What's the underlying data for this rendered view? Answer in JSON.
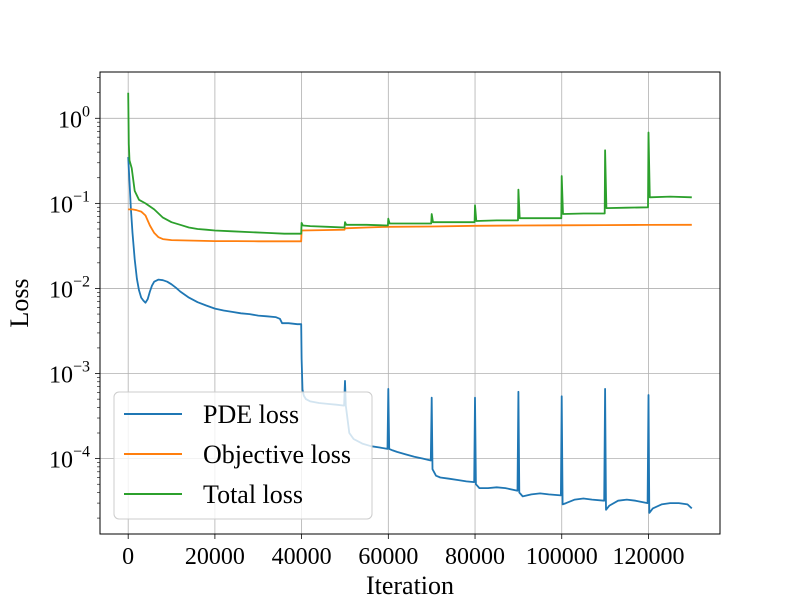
{
  "chart_data": {
    "type": "line",
    "xlabel": "Iteration",
    "ylabel": "Loss",
    "yscale": "log",
    "xlim": [
      -6500,
      136500
    ],
    "ylim": [
      1.3e-05,
      3.5
    ],
    "grid": true,
    "legend_position": "lower-left",
    "x_ticks": [
      {
        "value": 0,
        "label": "0"
      },
      {
        "value": 20000,
        "label": "20000"
      },
      {
        "value": 40000,
        "label": "40000"
      },
      {
        "value": 60000,
        "label": "60000"
      },
      {
        "value": 80000,
        "label": "80000"
      },
      {
        "value": 100000,
        "label": "100000"
      },
      {
        "value": 120000,
        "label": "120000"
      }
    ],
    "y_ticks": [
      {
        "value": 1,
        "base": "10",
        "exp": "0"
      },
      {
        "value": 0.1,
        "base": "10",
        "exp": "−1"
      },
      {
        "value": 0.01,
        "base": "10",
        "exp": "−2"
      },
      {
        "value": 0.001,
        "base": "10",
        "exp": "−3"
      },
      {
        "value": 0.0001,
        "base": "10",
        "exp": "−4"
      }
    ],
    "series": [
      {
        "name": "PDE loss",
        "color": "#1f77b4",
        "points": [
          [
            0,
            0.35
          ],
          [
            300,
            0.18
          ],
          [
            600,
            0.09
          ],
          [
            1000,
            0.045
          ],
          [
            1500,
            0.022
          ],
          [
            2000,
            0.013
          ],
          [
            2500,
            0.0095
          ],
          [
            3000,
            0.0078
          ],
          [
            3500,
            0.0072
          ],
          [
            4000,
            0.0068
          ],
          [
            4500,
            0.0075
          ],
          [
            5000,
            0.0092
          ],
          [
            5500,
            0.0108
          ],
          [
            6000,
            0.012
          ],
          [
            7000,
            0.0127
          ],
          [
            8000,
            0.0125
          ],
          [
            9000,
            0.012
          ],
          [
            10000,
            0.0112
          ],
          [
            11000,
            0.0102
          ],
          [
            12000,
            0.0092
          ],
          [
            14000,
            0.0078
          ],
          [
            16000,
            0.0069
          ],
          [
            18000,
            0.0063
          ],
          [
            20000,
            0.0058
          ],
          [
            22000,
            0.0055
          ],
          [
            24000,
            0.0053
          ],
          [
            26000,
            0.0051
          ],
          [
            28000,
            0.005
          ],
          [
            30000,
            0.0048
          ],
          [
            32000,
            0.0047
          ],
          [
            34000,
            0.0046
          ],
          [
            35000,
            0.0044
          ],
          [
            35500,
            0.0039
          ],
          [
            37000,
            0.0039
          ],
          [
            39000,
            0.0038
          ],
          [
            39900,
            0.0038
          ],
          [
            40000,
            0.0015
          ],
          [
            40200,
            0.00065
          ],
          [
            40500,
            0.00055
          ],
          [
            41000,
            0.0005
          ],
          [
            42000,
            0.00047
          ],
          [
            44000,
            0.00045
          ],
          [
            46000,
            0.00044
          ],
          [
            48000,
            0.00043
          ],
          [
            49800,
            0.00042
          ],
          [
            50000,
            0.00082
          ],
          [
            50200,
            0.00042
          ],
          [
            51000,
            0.0002
          ],
          [
            52000,
            0.00017
          ],
          [
            54000,
            0.00015
          ],
          [
            56000,
            0.00014
          ],
          [
            58000,
            0.000135
          ],
          [
            59800,
            0.00013
          ],
          [
            60000,
            0.00066
          ],
          [
            60200,
            0.00013
          ],
          [
            61000,
            0.000125
          ],
          [
            62000,
            0.00012
          ],
          [
            64000,
            0.000112
          ],
          [
            66000,
            0.000105
          ],
          [
            68000,
            0.0001
          ],
          [
            69800,
            9.5e-05
          ],
          [
            70000,
            0.00052
          ],
          [
            70200,
            7.5e-05
          ],
          [
            71000,
            6.3e-05
          ],
          [
            72000,
            6e-05
          ],
          [
            74000,
            5.8e-05
          ],
          [
            76000,
            5.6e-05
          ],
          [
            78000,
            5.4e-05
          ],
          [
            79800,
            5.3e-05
          ],
          [
            80000,
            0.00052
          ],
          [
            80200,
            5e-05
          ],
          [
            81000,
            4.5e-05
          ],
          [
            83000,
            4.5e-05
          ],
          [
            85000,
            4.6e-05
          ],
          [
            87000,
            4.5e-05
          ],
          [
            89800,
            4.2e-05
          ],
          [
            90000,
            0.00061
          ],
          [
            90200,
            4e-05
          ],
          [
            91000,
            3.6e-05
          ],
          [
            93000,
            3.8e-05
          ],
          [
            95000,
            3.9e-05
          ],
          [
            97000,
            3.8e-05
          ],
          [
            99800,
            3.7e-05
          ],
          [
            100000,
            0.00054
          ],
          [
            100200,
            2.9e-05
          ],
          [
            101000,
            3e-05
          ],
          [
            103000,
            3.3e-05
          ],
          [
            105000,
            3.4e-05
          ],
          [
            107000,
            3.3e-05
          ],
          [
            109800,
            3.2e-05
          ],
          [
            110000,
            0.00066
          ],
          [
            110200,
            2.5e-05
          ],
          [
            111000,
            2.8e-05
          ],
          [
            113000,
            3.2e-05
          ],
          [
            115000,
            3.3e-05
          ],
          [
            117000,
            3.2e-05
          ],
          [
            119800,
            3e-05
          ],
          [
            120000,
            0.00056
          ],
          [
            120200,
            2.3e-05
          ],
          [
            121000,
            2.6e-05
          ],
          [
            123000,
            2.9e-05
          ],
          [
            125000,
            3e-05
          ],
          [
            127000,
            3e-05
          ],
          [
            129000,
            2.9e-05
          ],
          [
            130000,
            2.6e-05
          ]
        ]
      },
      {
        "name": "Objective loss",
        "color": "#ff7f0e",
        "points": [
          [
            0,
            0.085
          ],
          [
            1000,
            0.085
          ],
          [
            2000,
            0.083
          ],
          [
            3000,
            0.08
          ],
          [
            4000,
            0.072
          ],
          [
            5000,
            0.055
          ],
          [
            6000,
            0.045
          ],
          [
            7000,
            0.04
          ],
          [
            8000,
            0.038
          ],
          [
            10000,
            0.037
          ],
          [
            15000,
            0.0365
          ],
          [
            20000,
            0.036
          ],
          [
            25000,
            0.036
          ],
          [
            30000,
            0.0358
          ],
          [
            35000,
            0.0358
          ],
          [
            39900,
            0.0358
          ],
          [
            40000,
            0.048
          ],
          [
            45000,
            0.0485
          ],
          [
            49900,
            0.049
          ],
          [
            50000,
            0.051
          ],
          [
            55000,
            0.052
          ],
          [
            60000,
            0.053
          ],
          [
            70000,
            0.0535
          ],
          [
            80000,
            0.0545
          ],
          [
            90000,
            0.055
          ],
          [
            100000,
            0.0552
          ],
          [
            110000,
            0.0555
          ],
          [
            120000,
            0.0558
          ],
          [
            130000,
            0.056
          ]
        ]
      },
      {
        "name": "Total loss",
        "color": "#2ca02c",
        "points": [
          [
            0,
            2.0
          ],
          [
            150,
            0.5
          ],
          [
            300,
            0.32
          ],
          [
            800,
            0.26
          ],
          [
            1500,
            0.14
          ],
          [
            2500,
            0.11
          ],
          [
            4000,
            0.1
          ],
          [
            6000,
            0.085
          ],
          [
            8000,
            0.068
          ],
          [
            10000,
            0.06
          ],
          [
            12000,
            0.056
          ],
          [
            14000,
            0.052
          ],
          [
            16000,
            0.05
          ],
          [
            18000,
            0.049
          ],
          [
            20000,
            0.048
          ],
          [
            24000,
            0.047
          ],
          [
            28000,
            0.046
          ],
          [
            32000,
            0.045
          ],
          [
            36000,
            0.044
          ],
          [
            39900,
            0.044
          ],
          [
            40000,
            0.059
          ],
          [
            40300,
            0.055
          ],
          [
            42000,
            0.054
          ],
          [
            46000,
            0.053
          ],
          [
            49900,
            0.052
          ],
          [
            50000,
            0.06
          ],
          [
            50300,
            0.056
          ],
          [
            55000,
            0.056
          ],
          [
            59900,
            0.055
          ],
          [
            60000,
            0.066
          ],
          [
            60300,
            0.058
          ],
          [
            65000,
            0.058
          ],
          [
            69900,
            0.058
          ],
          [
            70000,
            0.075
          ],
          [
            70300,
            0.06
          ],
          [
            75000,
            0.06
          ],
          [
            79900,
            0.06
          ],
          [
            80000,
            0.095
          ],
          [
            80300,
            0.062
          ],
          [
            85000,
            0.063
          ],
          [
            89900,
            0.063
          ],
          [
            90000,
            0.145
          ],
          [
            90300,
            0.067
          ],
          [
            95000,
            0.067
          ],
          [
            99900,
            0.067
          ],
          [
            100000,
            0.21
          ],
          [
            100300,
            0.075
          ],
          [
            105000,
            0.076
          ],
          [
            109900,
            0.076
          ],
          [
            110000,
            0.42
          ],
          [
            110300,
            0.088
          ],
          [
            115000,
            0.089
          ],
          [
            119900,
            0.09
          ],
          [
            120000,
            0.68
          ],
          [
            120300,
            0.118
          ],
          [
            125000,
            0.12
          ],
          [
            130000,
            0.118
          ]
        ]
      }
    ]
  }
}
